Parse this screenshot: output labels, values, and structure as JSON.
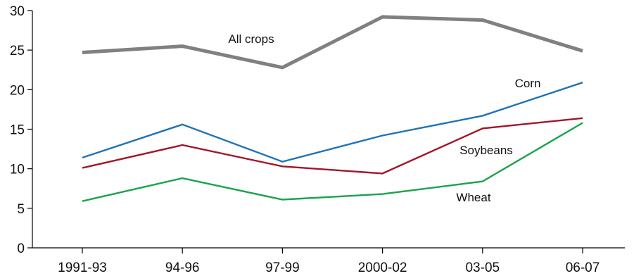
{
  "chart_data": {
    "type": "line",
    "categories": [
      "1991-93",
      "94-96",
      "97-99",
      "2000-02",
      "03-05",
      "06-07"
    ],
    "ylim": [
      0,
      30
    ],
    "yticks": [
      0,
      5,
      10,
      15,
      20,
      25,
      30
    ],
    "title": "",
    "xlabel": "",
    "ylabel": "",
    "grid": false,
    "legend": "inline labels",
    "series": [
      {
        "name": "All crops",
        "color": "#808080",
        "values": [
          24.7,
          25.5,
          22.8,
          29.2,
          28.8,
          24.9
        ]
      },
      {
        "name": "Corn",
        "color": "#1f73b7",
        "values": [
          11.4,
          15.6,
          10.9,
          14.2,
          16.7,
          20.9
        ]
      },
      {
        "name": "Soybeans",
        "color": "#a3162a",
        "values": [
          10.1,
          13.0,
          10.3,
          9.4,
          15.1,
          16.4
        ]
      },
      {
        "name": "Wheat",
        "color": "#1aa34a",
        "values": [
          5.9,
          8.8,
          6.1,
          6.8,
          8.4,
          15.8
        ]
      }
    ]
  }
}
